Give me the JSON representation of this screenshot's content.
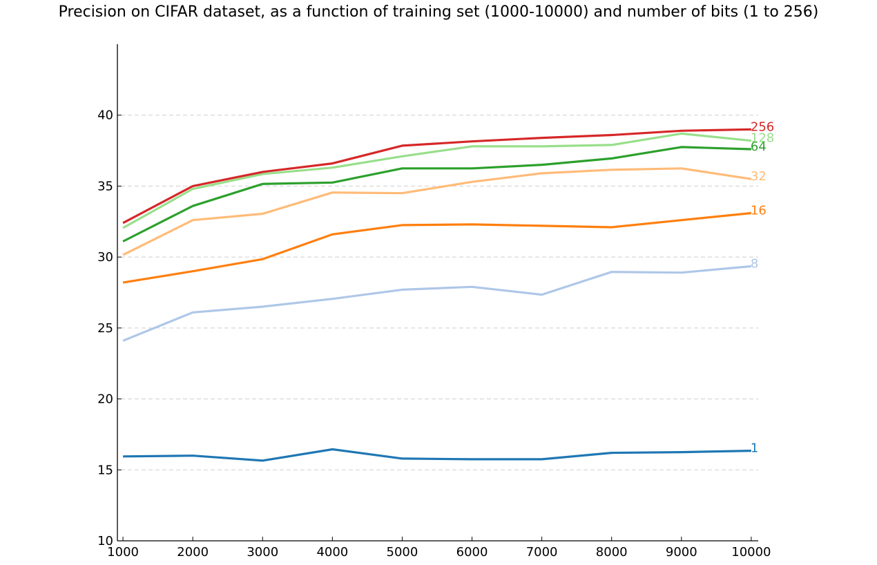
{
  "chart_data": {
    "type": "line",
    "title": "Precision on CIFAR dataset, as a function of training set (1000-10000) and number of bits (1 to 256)",
    "xlabel": "",
    "ylabel": "",
    "x": [
      1000,
      2000,
      3000,
      4000,
      5000,
      6000,
      7000,
      8000,
      9000,
      10000
    ],
    "xlim": [
      920,
      10100
    ],
    "ylim": [
      10,
      45
    ],
    "x_ticks": [
      "1000",
      "2000",
      "3000",
      "4000",
      "5000",
      "6000",
      "7000",
      "8000",
      "9000",
      "10000"
    ],
    "y_ticks": [
      "10",
      "15",
      "20",
      "25",
      "30",
      "35",
      "40"
    ],
    "grid": "horizontal dashed",
    "legend": "inline labels at right end of each line",
    "series": [
      {
        "name": "1",
        "color": "#1f77b4",
        "values": [
          15.95,
          16.0,
          15.65,
          16.45,
          15.8,
          15.75,
          15.75,
          16.2,
          16.25,
          16.35
        ]
      },
      {
        "name": "8",
        "color": "#aec7e8",
        "values": [
          24.1,
          26.1,
          26.5,
          27.05,
          27.7,
          27.9,
          27.35,
          28.95,
          28.9,
          29.35
        ]
      },
      {
        "name": "16",
        "color": "#ff7f0e",
        "values": [
          28.2,
          29.0,
          29.85,
          31.6,
          32.25,
          32.3,
          32.2,
          32.1,
          32.6,
          33.1
        ]
      },
      {
        "name": "32",
        "color": "#ffbb78",
        "values": [
          30.15,
          32.6,
          33.05,
          34.55,
          34.5,
          35.3,
          35.9,
          36.15,
          36.25,
          35.5
        ]
      },
      {
        "name": "64",
        "color": "#2ca02c",
        "values": [
          31.1,
          33.6,
          35.15,
          35.25,
          36.25,
          36.25,
          36.5,
          36.95,
          37.75,
          37.6
        ]
      },
      {
        "name": "128",
        "color": "#98df8a",
        "values": [
          32.05,
          34.8,
          35.85,
          36.3,
          37.1,
          37.8,
          37.8,
          37.9,
          38.7,
          38.2
        ]
      },
      {
        "name": "256",
        "color": "#d62728",
        "values": [
          32.4,
          35.0,
          36.0,
          36.6,
          37.85,
          38.15,
          38.4,
          38.6,
          38.9,
          39.0
        ]
      }
    ]
  }
}
